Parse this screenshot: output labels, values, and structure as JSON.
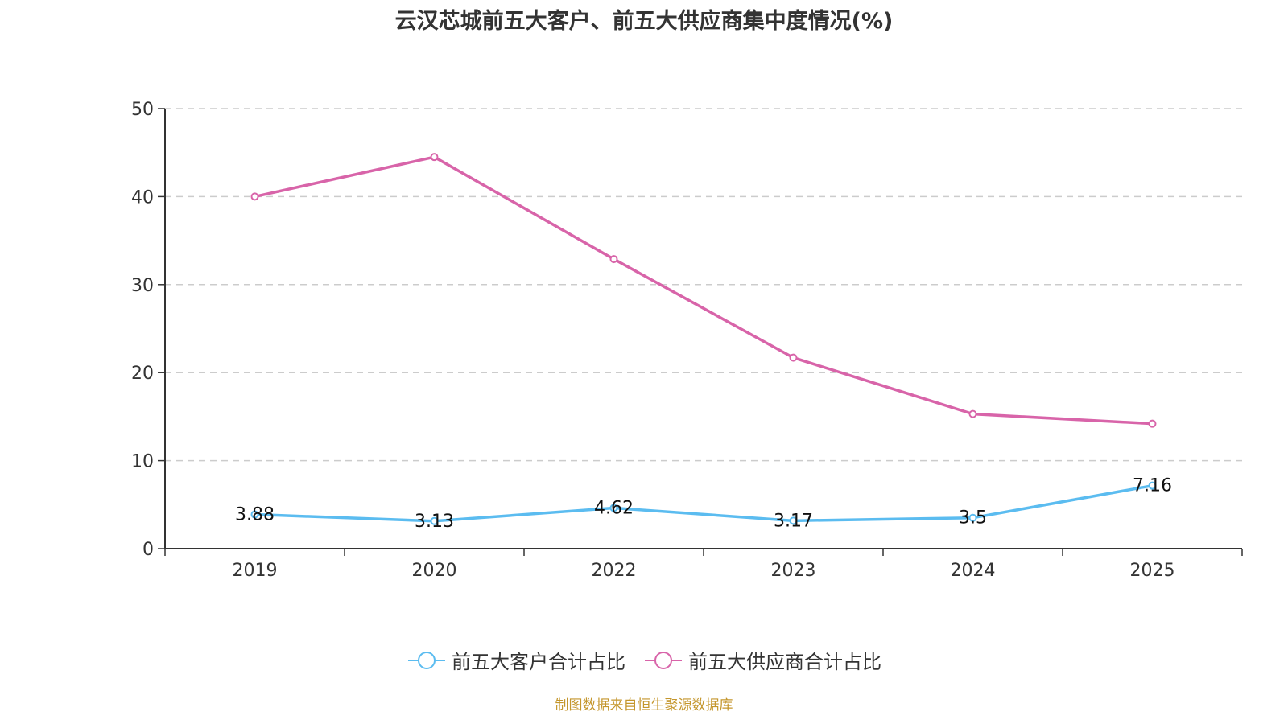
{
  "chart_data": {
    "type": "line",
    "title": "云汉芯城前五大客户、前五大供应商集中度情况(%)",
    "categories": [
      "2019",
      "2020",
      "2022",
      "2023",
      "2024",
      "2025"
    ],
    "xlabel": "",
    "ylabel": "",
    "ylim": [
      0,
      50
    ],
    "yticks": [
      0,
      10,
      20,
      30,
      40,
      50
    ],
    "grid": true,
    "legend_position": "bottom",
    "series": [
      {
        "name": "前五大客户合计占比",
        "color": "#5bbcf0",
        "values": [
          3.88,
          3.13,
          4.62,
          3.17,
          3.5,
          7.16
        ],
        "labels": [
          "3.88",
          "3.13",
          "4.62",
          "3.17",
          "3.5",
          "7.16"
        ],
        "show_labels": true
      },
      {
        "name": "前五大供应商合计占比",
        "color": "#d864a9",
        "values": [
          40.0,
          44.5,
          32.9,
          21.7,
          15.3,
          14.2
        ],
        "show_labels": false
      }
    ]
  },
  "source_note": "制图数据来自恒生聚源数据库"
}
